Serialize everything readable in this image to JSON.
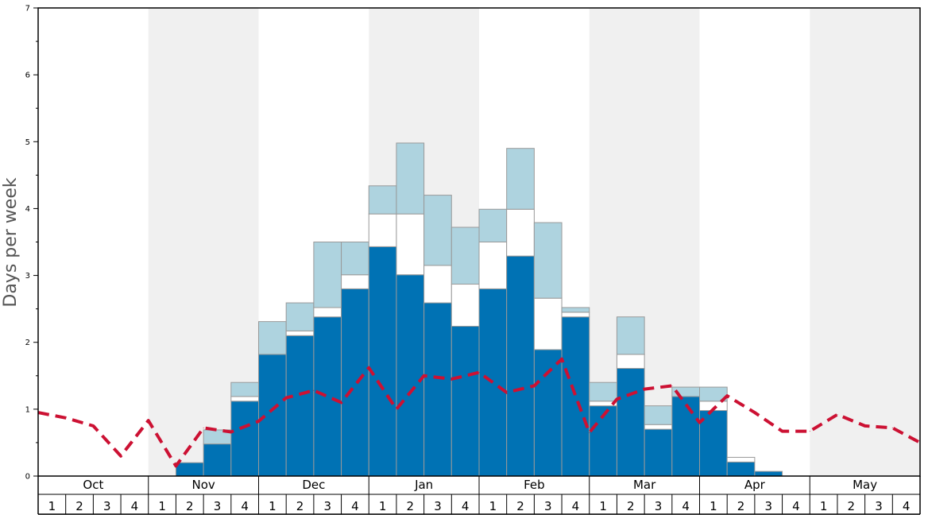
{
  "chart_data": {
    "type": "bar",
    "ylabel": "Days per week",
    "ylim": [
      0,
      7
    ],
    "y_ticks": [
      "0",
      "1",
      "2",
      "3",
      "4",
      "5",
      "6",
      "7"
    ],
    "months": [
      "Oct",
      "Nov",
      "Dec",
      "Jan",
      "Feb",
      "Mar",
      "Apr",
      "May"
    ],
    "week_labels": [
      "1",
      "2",
      "3",
      "4"
    ],
    "shaded_months": [
      "Nov",
      "Jan",
      "Mar",
      "May"
    ],
    "colors": {
      "base": "#0072b4",
      "middle": "#ffffff",
      "top": "#aed3df",
      "line": "#cc1133",
      "shade": "#f0f0f0",
      "bar_edge": "#999999"
    },
    "series": [
      {
        "values": [
          0,
          0,
          0,
          0,
          0,
          0.2,
          0.48,
          1.12,
          1.82,
          2.1,
          2.38,
          2.8,
          3.43,
          3.01,
          2.59,
          2.24,
          2.8,
          3.29,
          1.89,
          2.38,
          1.05,
          1.61,
          0.7,
          1.19,
          0.98,
          0.21,
          0.07,
          0,
          0,
          0,
          0,
          0
        ]
      },
      {
        "values": [
          0,
          0,
          0,
          0,
          0,
          0,
          0,
          0.07,
          0,
          0.07,
          0.14,
          0.21,
          0.49,
          0.91,
          0.56,
          0.63,
          0.7,
          0.7,
          0.77,
          0.07,
          0.07,
          0.21,
          0.07,
          0,
          0.14,
          0.07,
          0,
          0,
          0,
          0,
          0,
          0
        ]
      },
      {
        "values": [
          0,
          0,
          0,
          0,
          0,
          0,
          0.21,
          0.21,
          0.49,
          0.42,
          0.98,
          0.49,
          0.42,
          1.06,
          1.05,
          0.85,
          0.49,
          0.91,
          1.13,
          0.07,
          0.28,
          0.56,
          0.28,
          0.14,
          0.21,
          0,
          0,
          0,
          0,
          0,
          0,
          0
        ]
      },
      {
        "values": [
          0.95,
          0.87,
          0.75,
          0.3,
          0.83,
          0.15,
          0.72,
          0.66,
          0.82,
          1.17,
          1.28,
          1.1,
          1.62,
          1.0,
          1.5,
          1.45,
          1.55,
          1.25,
          1.35,
          1.75,
          0.65,
          1.15,
          1.3,
          1.35,
          0.8,
          1.2,
          0.95,
          0.67,
          0.67,
          0.92,
          0.75,
          0.72,
          0.5
        ]
      }
    ]
  }
}
